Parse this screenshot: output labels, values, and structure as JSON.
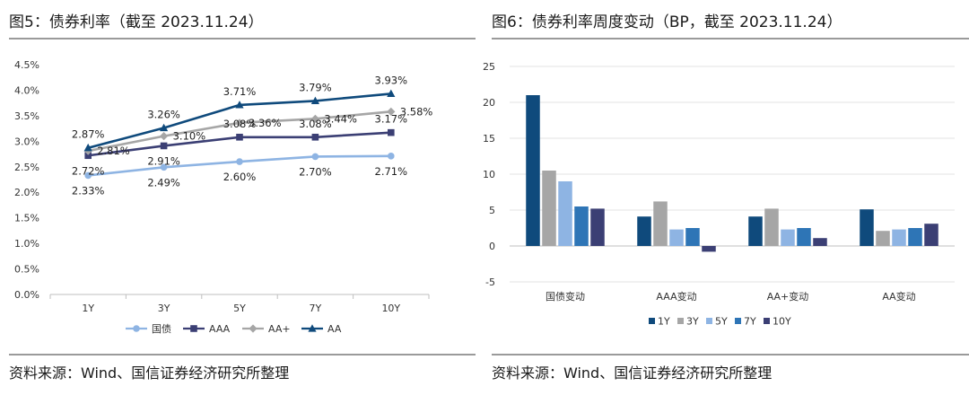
{
  "left": {
    "title": "图5：债券利率（截至 2023.11.24）",
    "source": "资料来源：Wind、国信证券经济研究所整理"
  },
  "right": {
    "title": "图6：债券利率周度变动（BP，截至 2023.11.24）",
    "source": "资料来源：Wind、国信证券经济研究所整理"
  },
  "chart_data": [
    {
      "type": "line",
      "title": "图5：债券利率（截至 2023.11.24）",
      "categories": [
        "1Y",
        "3Y",
        "5Y",
        "7Y",
        "10Y"
      ],
      "ylim": [
        0,
        4.5
      ],
      "ytick_labels": [
        "0.0%",
        "0.5%",
        "1.0%",
        "1.5%",
        "2.0%",
        "2.5%",
        "3.0%",
        "3.5%",
        "4.0%",
        "4.5%"
      ],
      "grid": false,
      "legend_position": "bottom",
      "series": [
        {
          "name": "国债",
          "values": [
            2.33,
            2.49,
            2.6,
            2.7,
            2.71
          ],
          "labels": [
            "2.33%",
            "2.49%",
            "2.60%",
            "2.70%",
            "2.71%"
          ],
          "color": "#8eb4e3",
          "marker": "circle"
        },
        {
          "name": "AAA",
          "values": [
            2.72,
            2.91,
            3.08,
            3.08,
            3.17
          ],
          "labels": [
            "2.72%",
            "2.91%",
            "3.08%",
            "3.08%",
            "3.17%"
          ],
          "color": "#3b3f74",
          "marker": "square"
        },
        {
          "name": "AA+",
          "values": [
            2.81,
            3.1,
            3.36,
            3.44,
            3.58
          ],
          "labels": [
            "2.81%",
            "3.10%",
            "3.36%",
            "3.44%",
            "3.58%"
          ],
          "color": "#a6a6a6",
          "marker": "diamond"
        },
        {
          "name": "AA",
          "values": [
            2.87,
            3.26,
            3.71,
            3.79,
            3.93
          ],
          "labels": [
            "2.87%",
            "3.26%",
            "3.71%",
            "3.79%",
            "3.93%"
          ],
          "color": "#0f4a7c",
          "marker": "triangle"
        }
      ]
    },
    {
      "type": "bar",
      "title": "图6：债券利率周度变动（BP，截至 2023.11.24）",
      "categories": [
        "国债变动",
        "AAA变动",
        "AA+变动",
        "AA变动"
      ],
      "ylim": [
        -5,
        25
      ],
      "yticks": [
        -5,
        0,
        5,
        10,
        15,
        20,
        25
      ],
      "grid": true,
      "legend_position": "bottom",
      "series": [
        {
          "name": "1Y",
          "values": [
            21.0,
            4.1,
            4.1,
            5.1
          ],
          "color": "#0f4a7c"
        },
        {
          "name": "3Y",
          "values": [
            10.5,
            6.2,
            5.2,
            2.1
          ],
          "color": "#a6a6a6"
        },
        {
          "name": "5Y",
          "values": [
            9.0,
            2.3,
            2.3,
            2.3
          ],
          "color": "#8eb4e3"
        },
        {
          "name": "7Y",
          "values": [
            5.5,
            2.5,
            2.5,
            2.5
          ],
          "color": "#2e75b6"
        },
        {
          "name": "10Y",
          "values": [
            5.2,
            -0.8,
            1.1,
            3.1
          ],
          "color": "#3b3f74"
        }
      ]
    }
  ]
}
